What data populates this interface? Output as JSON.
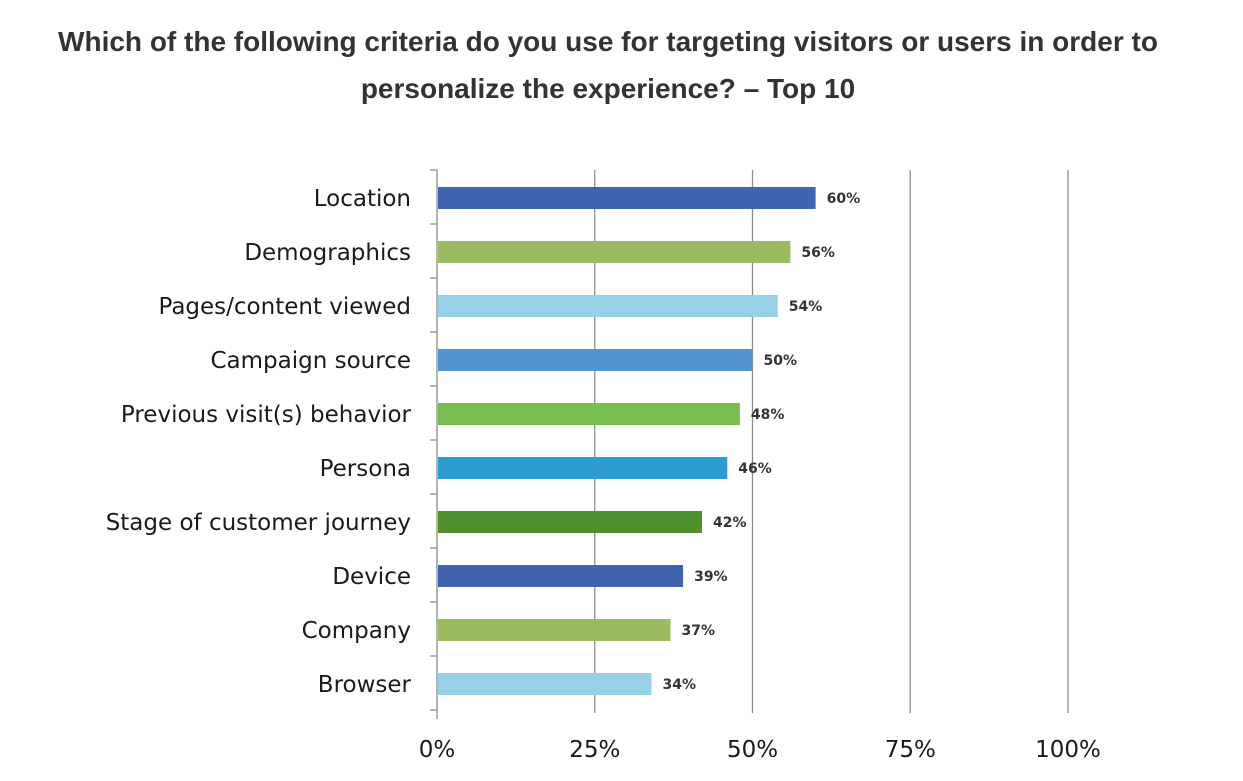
{
  "chart_data": {
    "type": "bar",
    "orientation": "horizontal",
    "title": "Which of the following criteria do you use for targeting visitors or users in order to personalize the experience? – Top 10",
    "categories": [
      "Location",
      "Demographics",
      "Pages/content viewed",
      "Campaign source",
      "Previous visit(s) behavior",
      "Persona",
      "Stage of customer journey",
      "Device",
      "Company",
      "Browser"
    ],
    "values": [
      60,
      56,
      54,
      50,
      48,
      46,
      42,
      39,
      37,
      34
    ],
    "value_labels": [
      "60%",
      "56%",
      "54%",
      "50%",
      "48%",
      "46%",
      "42%",
      "39%",
      "37%",
      "34%"
    ],
    "bar_colors": [
      "#4063b2",
      "#9bbb5f",
      "#95d2ea",
      "#5595cf",
      "#77bd52",
      "#2f9ccf",
      "#4f912f",
      "#4063b2",
      "#9bbb5f",
      "#95d2ea"
    ],
    "xlim": [
      0,
      100
    ],
    "x_ticks": [
      0,
      25,
      50,
      75,
      100
    ],
    "x_tick_labels": [
      "0%",
      "25%",
      "50%",
      "75%",
      "100%"
    ],
    "xlabel": "",
    "ylabel": "",
    "grid": true,
    "legend": "none"
  }
}
